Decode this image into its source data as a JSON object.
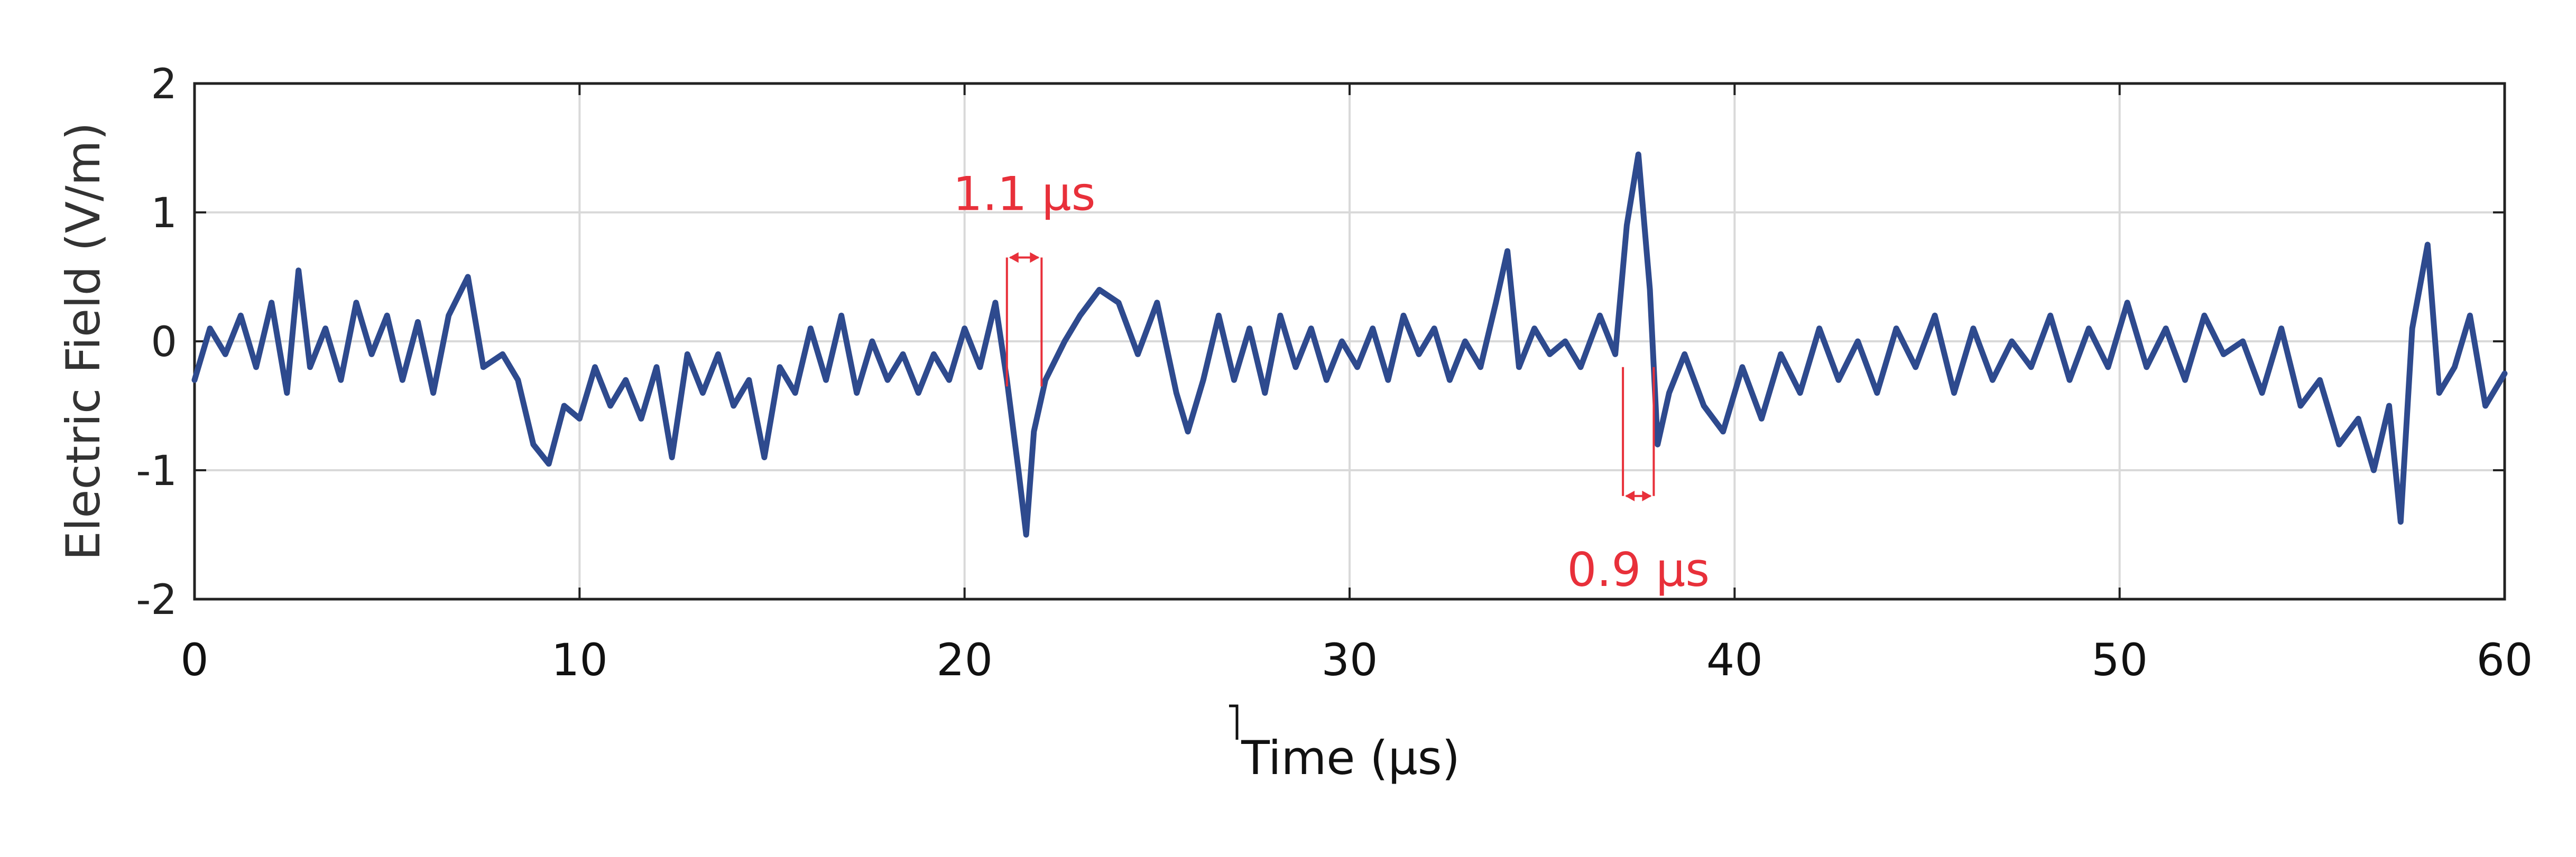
{
  "chart_data": {
    "type": "line",
    "xlabel": "Time (μs)",
    "ylabel": "Electric Field (V/m)",
    "xlim": [
      0,
      60
    ],
    "ylim": [
      -2,
      2
    ],
    "xticks": [
      0,
      10,
      20,
      30,
      40,
      50,
      60
    ],
    "yticks": [
      -2,
      -1,
      0,
      1,
      2
    ],
    "grid": true,
    "series": [
      {
        "color": "#2e4a8e",
        "points": [
          [
            0.0,
            -0.3
          ],
          [
            0.4,
            0.1
          ],
          [
            0.8,
            -0.1
          ],
          [
            1.2,
            0.2
          ],
          [
            1.6,
            -0.2
          ],
          [
            2.0,
            0.3
          ],
          [
            2.4,
            -0.4
          ],
          [
            2.7,
            0.55
          ],
          [
            3.0,
            -0.2
          ],
          [
            3.4,
            0.1
          ],
          [
            3.8,
            -0.3
          ],
          [
            4.2,
            0.3
          ],
          [
            4.6,
            -0.1
          ],
          [
            5.0,
            0.2
          ],
          [
            5.4,
            -0.3
          ],
          [
            5.8,
            0.15
          ],
          [
            6.2,
            -0.4
          ],
          [
            6.6,
            0.2
          ],
          [
            7.1,
            0.5
          ],
          [
            7.5,
            -0.2
          ],
          [
            8.0,
            -0.1
          ],
          [
            8.4,
            -0.3
          ],
          [
            8.8,
            -0.8
          ],
          [
            9.2,
            -0.95
          ],
          [
            9.6,
            -0.5
          ],
          [
            10.0,
            -0.6
          ],
          [
            10.4,
            -0.2
          ],
          [
            10.8,
            -0.5
          ],
          [
            11.2,
            -0.3
          ],
          [
            11.6,
            -0.6
          ],
          [
            12.0,
            -0.2
          ],
          [
            12.4,
            -0.9
          ],
          [
            12.8,
            -0.1
          ],
          [
            13.2,
            -0.4
          ],
          [
            13.6,
            -0.1
          ],
          [
            14.0,
            -0.5
          ],
          [
            14.4,
            -0.3
          ],
          [
            14.8,
            -0.9
          ],
          [
            15.2,
            -0.2
          ],
          [
            15.6,
            -0.4
          ],
          [
            16.0,
            0.1
          ],
          [
            16.4,
            -0.3
          ],
          [
            16.8,
            0.2
          ],
          [
            17.2,
            -0.4
          ],
          [
            17.6,
            0.0
          ],
          [
            18.0,
            -0.3
          ],
          [
            18.4,
            -0.1
          ],
          [
            18.8,
            -0.4
          ],
          [
            19.2,
            -0.1
          ],
          [
            19.6,
            -0.3
          ],
          [
            20.0,
            0.1
          ],
          [
            20.4,
            -0.2
          ],
          [
            20.8,
            0.3
          ],
          [
            21.1,
            -0.3
          ],
          [
            21.4,
            -1.0
          ],
          [
            21.6,
            -1.5
          ],
          [
            21.8,
            -0.7
          ],
          [
            22.1,
            -0.3
          ],
          [
            22.6,
            0.0
          ],
          [
            23.0,
            0.2
          ],
          [
            23.5,
            0.4
          ],
          [
            24.0,
            0.3
          ],
          [
            24.5,
            -0.1
          ],
          [
            25.0,
            0.3
          ],
          [
            25.5,
            -0.4
          ],
          [
            25.8,
            -0.7
          ],
          [
            26.2,
            -0.3
          ],
          [
            26.6,
            0.2
          ],
          [
            27.0,
            -0.3
          ],
          [
            27.4,
            0.1
          ],
          [
            27.8,
            -0.4
          ],
          [
            28.2,
            0.2
          ],
          [
            28.6,
            -0.2
          ],
          [
            29.0,
            0.1
          ],
          [
            29.4,
            -0.3
          ],
          [
            29.8,
            0.0
          ],
          [
            30.2,
            -0.2
          ],
          [
            30.6,
            0.1
          ],
          [
            31.0,
            -0.3
          ],
          [
            31.4,
            0.2
          ],
          [
            31.8,
            -0.1
          ],
          [
            32.2,
            0.1
          ],
          [
            32.6,
            -0.3
          ],
          [
            33.0,
            0.0
          ],
          [
            33.4,
            -0.2
          ],
          [
            33.8,
            0.3
          ],
          [
            34.1,
            0.7
          ],
          [
            34.4,
            -0.2
          ],
          [
            34.8,
            0.1
          ],
          [
            35.2,
            -0.1
          ],
          [
            35.6,
            0.0
          ],
          [
            36.0,
            -0.2
          ],
          [
            36.5,
            0.2
          ],
          [
            36.9,
            -0.1
          ],
          [
            37.2,
            0.9
          ],
          [
            37.5,
            1.45
          ],
          [
            37.8,
            0.4
          ],
          [
            38.0,
            -0.8
          ],
          [
            38.3,
            -0.4
          ],
          [
            38.7,
            -0.1
          ],
          [
            39.2,
            -0.5
          ],
          [
            39.7,
            -0.7
          ],
          [
            40.2,
            -0.2
          ],
          [
            40.7,
            -0.6
          ],
          [
            41.2,
            -0.1
          ],
          [
            41.7,
            -0.4
          ],
          [
            42.2,
            0.1
          ],
          [
            42.7,
            -0.3
          ],
          [
            43.2,
            0.0
          ],
          [
            43.7,
            -0.4
          ],
          [
            44.2,
            0.1
          ],
          [
            44.7,
            -0.2
          ],
          [
            45.2,
            0.2
          ],
          [
            45.7,
            -0.4
          ],
          [
            46.2,
            0.1
          ],
          [
            46.7,
            -0.3
          ],
          [
            47.2,
            0.0
          ],
          [
            47.7,
            -0.2
          ],
          [
            48.2,
            0.2
          ],
          [
            48.7,
            -0.3
          ],
          [
            49.2,
            0.1
          ],
          [
            49.7,
            -0.2
          ],
          [
            50.2,
            0.3
          ],
          [
            50.7,
            -0.2
          ],
          [
            51.2,
            0.1
          ],
          [
            51.7,
            -0.3
          ],
          [
            52.2,
            0.2
          ],
          [
            52.7,
            -0.1
          ],
          [
            53.2,
            0.0
          ],
          [
            53.7,
            -0.4
          ],
          [
            54.2,
            0.1
          ],
          [
            54.7,
            -0.5
          ],
          [
            55.2,
            -0.3
          ],
          [
            55.7,
            -0.8
          ],
          [
            56.2,
            -0.6
          ],
          [
            56.6,
            -1.0
          ],
          [
            57.0,
            -0.5
          ],
          [
            57.3,
            -1.4
          ],
          [
            57.6,
            0.1
          ],
          [
            58.0,
            0.75
          ],
          [
            58.3,
            -0.4
          ],
          [
            58.7,
            -0.2
          ],
          [
            59.1,
            0.2
          ],
          [
            59.5,
            -0.5
          ],
          [
            60.0,
            -0.25
          ]
        ]
      }
    ],
    "annotations": [
      {
        "text": "1.1 μs",
        "color": "#e8303a",
        "x_start": 21.1,
        "x_end": 22.0,
        "bracket_y": [
          0.65,
          -0.35
        ],
        "position": "above"
      },
      {
        "text": "0.9 μs",
        "color": "#e8303a",
        "x_start": 37.1,
        "x_end": 37.9,
        "bracket_y": [
          -1.2,
          -0.2
        ],
        "position": "below"
      }
    ]
  }
}
